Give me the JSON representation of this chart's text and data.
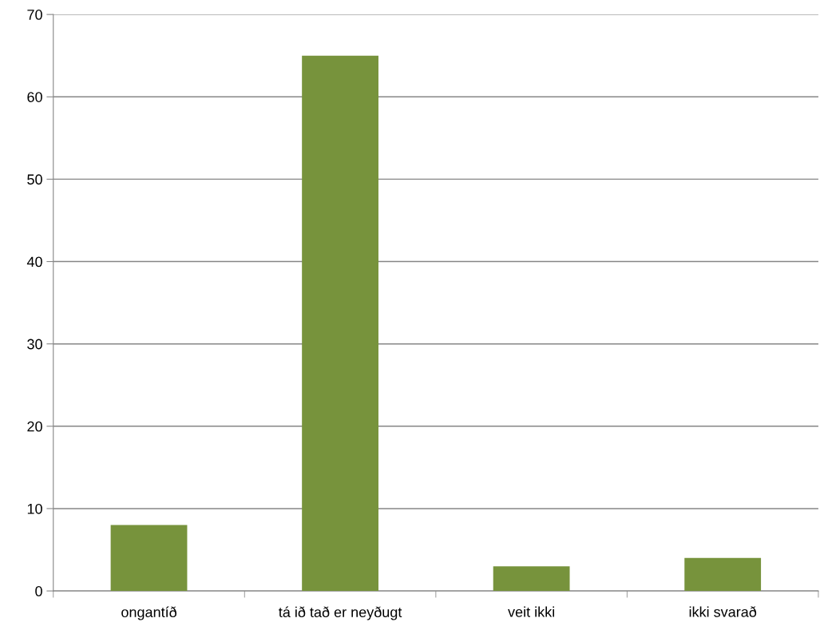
{
  "chart_data": {
    "type": "bar",
    "categories": [
      "ongantíð",
      "tá ið tað er neyðugt",
      "veit ikki",
      "ikki svarað"
    ],
    "values": [
      8,
      65,
      3,
      4
    ],
    "color": "#77933c",
    "ylim": [
      0,
      70
    ],
    "yticks": [
      0,
      10,
      20,
      30,
      40,
      50,
      60,
      70
    ],
    "grid": "y",
    "legend": false
  }
}
